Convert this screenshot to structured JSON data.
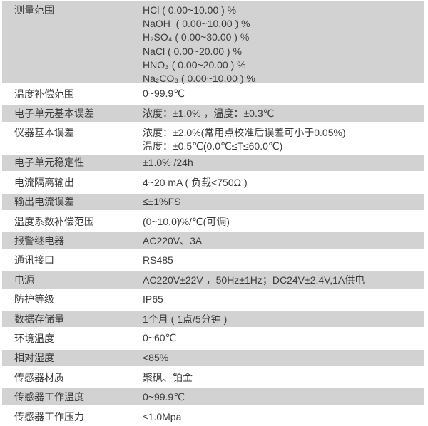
{
  "page": {
    "background_color": "#ffffff",
    "stripe_color": "#d2d2d2",
    "text_color": "#3b3b3b"
  },
  "table": {
    "rows": [
      {
        "label": "测量范围",
        "values": [
          "HCl ( 0.00~10.00 ) %",
          "NaOH  ( 0.00~10.00 ) %",
          "H₂SO₄ ( 0.00~30.00 ) %",
          "NaCl ( 0.00~20.00 ) %",
          "HNO₃ ( 0.00~20.00 ) %",
          "Na₂CO₃ ( 0.00~10.00 ) %"
        ]
      },
      {
        "label": "温度补偿范围",
        "values": [
          "0~99.9℃"
        ]
      },
      {
        "label": "电子单元基本误差",
        "values": [
          "浓度：±1.0% ，温度：±0.3℃"
        ]
      },
      {
        "label": "仪器基本误差",
        "values": [
          "浓度：±2.0%(常用点校准后误差可小于0.05%)",
          "温度：±0.5℃(0.0℃≤T≤60.0℃)"
        ]
      },
      {
        "label": "电子单元稳定性",
        "values": [
          "±1.0% /24h"
        ]
      },
      {
        "label": "电流隔离输出",
        "values": [
          "4~20 mA ( 负载<750Ω )"
        ]
      },
      {
        "label": "输出电流误差",
        "values": [
          "≤±1%FS"
        ]
      },
      {
        "label": "温度系数补偿范围",
        "values": [
          "(0~10.0)%/℃(可调)"
        ]
      },
      {
        "label": "报警继电器",
        "values": [
          "AC220V、3A"
        ]
      },
      {
        "label": "通讯接口",
        "values": [
          "RS485"
        ]
      },
      {
        "label": "电源",
        "values": [
          "AC220V±22V ，50Hz±1Hz；DC24V±2.4V,1A供电"
        ]
      },
      {
        "label": "防护等级",
        "values": [
          "IP65"
        ]
      },
      {
        "label": "数据存储量",
        "values": [
          "1个月 ( 1点/5分钟 )"
        ]
      },
      {
        "label": "环境温度",
        "values": [
          "0~60℃"
        ]
      },
      {
        "label": "相对湿度",
        "values": [
          "<85%"
        ]
      },
      {
        "label": "传感器材质",
        "values": [
          "聚砜、铂金"
        ]
      },
      {
        "label": "传感器工作温度",
        "values": [
          "0~99.9℃"
        ]
      },
      {
        "label": "传感器工作压力",
        "values": [
          "≤1.0Mpa"
        ]
      }
    ]
  }
}
